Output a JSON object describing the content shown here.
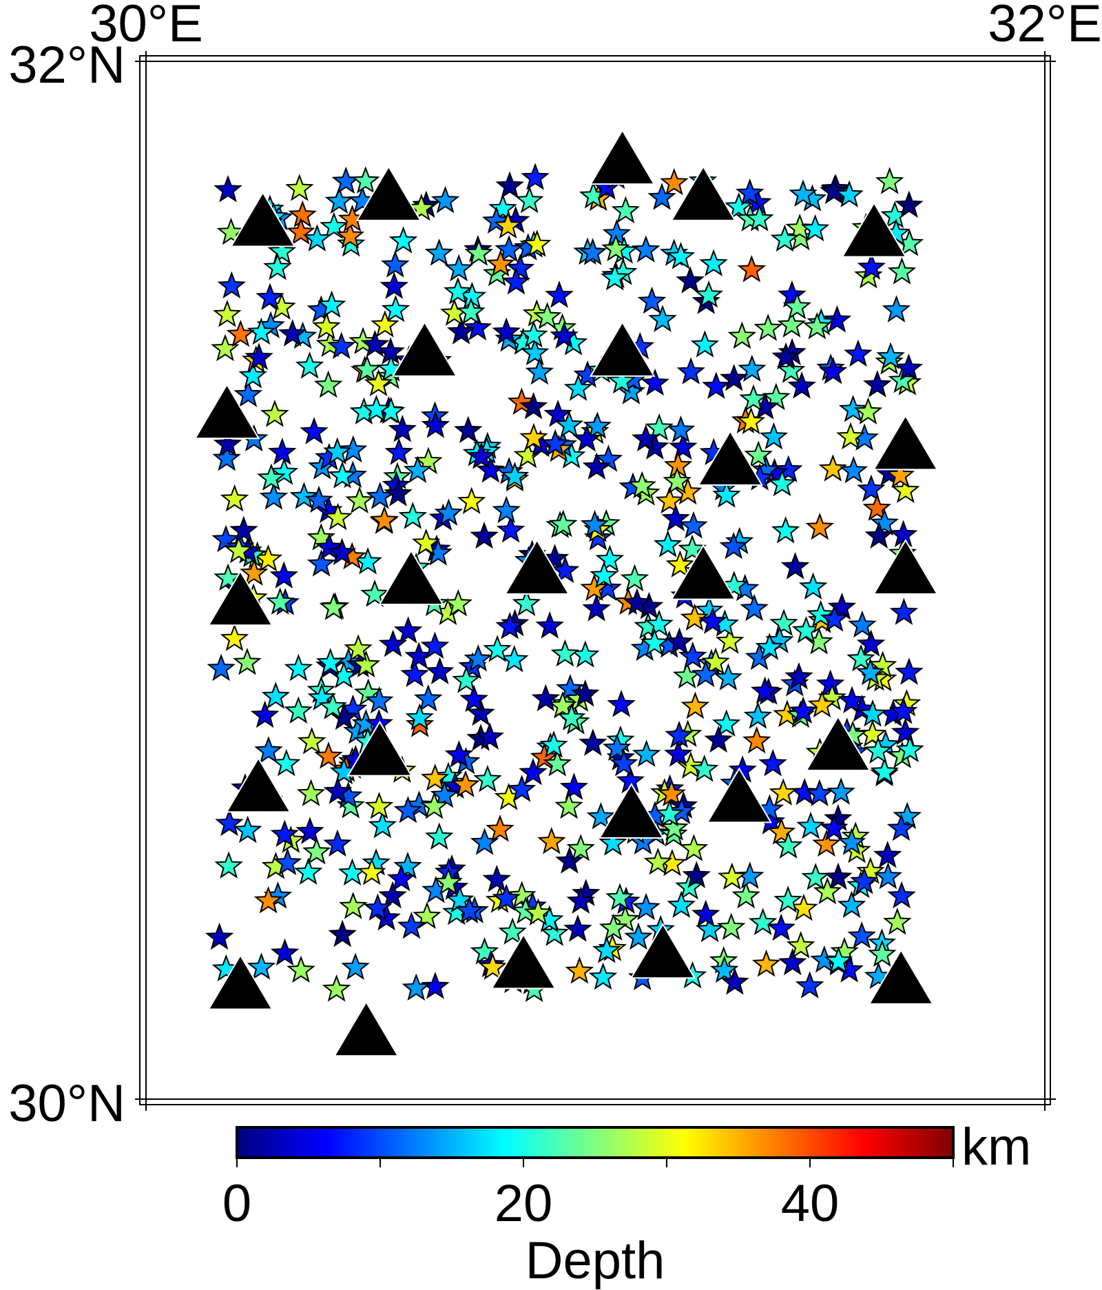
{
  "map": {
    "projection": "cartesian",
    "lon_range": [
      30,
      32
    ],
    "lat_range": [
      30,
      32
    ],
    "frame_labels": {
      "top_left_lon": "30°E",
      "top_right_lon": "32°E",
      "left_top_lat": "32°N",
      "left_bottom_lat": "30°N"
    },
    "event_symbol": "star-icon",
    "station_symbol": "triangle-icon",
    "station_color": "#000000",
    "event_outline_color": "#000000",
    "stations": [
      {
        "lon": 31.06,
        "lat": 31.81
      },
      {
        "lon": 30.54,
        "lat": 31.74
      },
      {
        "lon": 30.26,
        "lat": 31.69
      },
      {
        "lon": 31.24,
        "lat": 31.74
      },
      {
        "lon": 31.62,
        "lat": 31.67
      },
      {
        "lon": 30.62,
        "lat": 31.44
      },
      {
        "lon": 31.06,
        "lat": 31.44
      },
      {
        "lon": 30.18,
        "lat": 31.32
      },
      {
        "lon": 31.3,
        "lat": 31.23
      },
      {
        "lon": 31.69,
        "lat": 31.26
      },
      {
        "lon": 30.21,
        "lat": 30.96
      },
      {
        "lon": 30.59,
        "lat": 31.0
      },
      {
        "lon": 30.87,
        "lat": 31.02
      },
      {
        "lon": 31.24,
        "lat": 31.01
      },
      {
        "lon": 31.69,
        "lat": 31.02
      },
      {
        "lon": 30.52,
        "lat": 30.67
      },
      {
        "lon": 30.25,
        "lat": 30.6
      },
      {
        "lon": 31.08,
        "lat": 30.55
      },
      {
        "lon": 31.32,
        "lat": 30.58
      },
      {
        "lon": 31.54,
        "lat": 30.68
      },
      {
        "lon": 30.21,
        "lat": 30.22
      },
      {
        "lon": 30.84,
        "lat": 30.26
      },
      {
        "lon": 31.15,
        "lat": 30.28
      },
      {
        "lon": 31.68,
        "lat": 30.23
      },
      {
        "lon": 30.49,
        "lat": 30.13
      }
    ]
  },
  "colorbar": {
    "label": "Depth",
    "unit": "km",
    "range": [
      0,
      50
    ],
    "tick_labels": [
      "0",
      "20",
      "40"
    ],
    "tick_values": [
      0,
      20,
      40
    ],
    "minor_tick_values": [
      0,
      10,
      20,
      30,
      40,
      50
    ],
    "colormap": "jet",
    "colormap_stops": [
      "#00007f",
      "#0000ff",
      "#007fff",
      "#00ffff",
      "#7fff7f",
      "#ffff00",
      "#ff7f00",
      "#ff0000",
      "#7f0000"
    ]
  }
}
